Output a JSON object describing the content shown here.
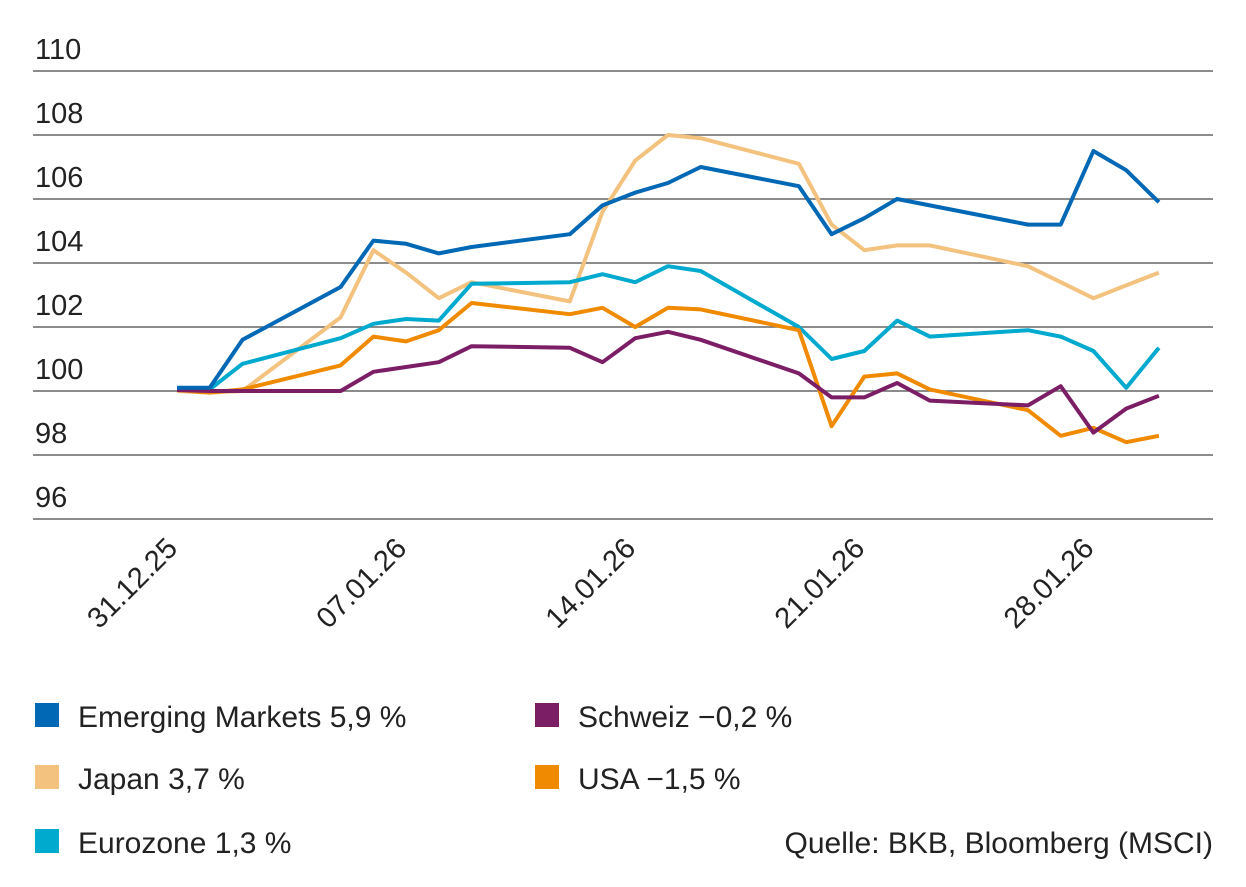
{
  "chart_data": {
    "type": "line",
    "title": "",
    "xlabel": "",
    "ylabel": "",
    "ylim": [
      96,
      110
    ],
    "yticks": [
      96,
      98,
      100,
      102,
      104,
      106,
      108,
      110
    ],
    "grid": true,
    "legend_placement": "bottom",
    "x": [
      "31.12.25",
      "01.01.26",
      "02.01.26",
      "05.01.26",
      "06.01.26",
      "07.01.26",
      "08.01.26",
      "09.01.26",
      "12.01.26",
      "13.01.26",
      "14.01.26",
      "15.01.26",
      "16.01.26",
      "19.01.26",
      "20.01.26",
      "21.01.26",
      "22.01.26",
      "23.01.26",
      "26.01.26",
      "27.01.26",
      "28.01.26",
      "29.01.26",
      "30.01.26"
    ],
    "xtick_labels": [
      "31.12.25",
      "07.01.26",
      "14.01.26",
      "21.01.26",
      "28.01.26"
    ],
    "series": [
      {
        "name": "Emerging Markets",
        "label": "Emerging Markets 5,9 %",
        "color": "#0068b4",
        "values": [
          100.1,
          100.1,
          101.6,
          103.25,
          104.7,
          104.6,
          104.3,
          104.5,
          104.9,
          105.8,
          106.2,
          106.5,
          107.0,
          106.4,
          104.9,
          105.4,
          106.0,
          105.8,
          105.2,
          105.2,
          107.5,
          106.9,
          105.9
        ]
      },
      {
        "name": "Japan",
        "label": "Japan 3,7 %",
        "color": "#f2c27e",
        "values": [
          100.0,
          99.95,
          100.0,
          102.3,
          104.4,
          103.7,
          102.9,
          103.4,
          102.8,
          105.6,
          107.2,
          108.0,
          107.9,
          107.1,
          105.2,
          104.4,
          104.55,
          104.55,
          103.9,
          103.4,
          102.9,
          103.3,
          103.7
        ]
      },
      {
        "name": "Eurozone",
        "label": "Eurozone 1,3 %",
        "color": "#00a9ce",
        "values": [
          100.05,
          100.05,
          100.85,
          101.65,
          102.1,
          102.25,
          102.2,
          103.35,
          103.4,
          103.65,
          103.4,
          103.9,
          103.75,
          102.0,
          101.0,
          101.25,
          102.2,
          101.7,
          101.9,
          101.7,
          101.25,
          100.1,
          101.35
        ]
      },
      {
        "name": "Schweiz",
        "label": "Schweiz −0,2 %",
        "color": "#7b1e66",
        "values": [
          100.03,
          100.0,
          100.0,
          100.0,
          100.6,
          100.75,
          100.9,
          101.4,
          101.35,
          100.9,
          101.65,
          101.85,
          101.6,
          100.55,
          99.8,
          99.8,
          100.25,
          99.7,
          99.55,
          100.15,
          98.7,
          99.45,
          99.85
        ]
      },
      {
        "name": "USA",
        "label": "USA −1,5 %",
        "color": "#f08a00",
        "values": [
          100.03,
          99.95,
          100.05,
          100.8,
          101.7,
          101.55,
          101.9,
          102.75,
          102.4,
          102.6,
          102.0,
          102.6,
          102.55,
          101.9,
          98.9,
          100.45,
          100.55,
          100.05,
          99.4,
          98.6,
          98.85,
          98.4,
          98.6
        ]
      }
    ],
    "source": "Quelle: BKB, Bloomberg (MSCI)"
  }
}
